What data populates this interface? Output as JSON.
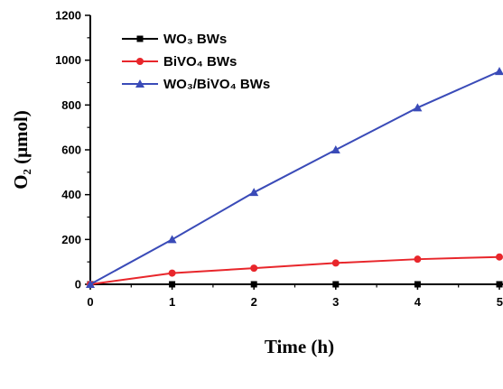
{
  "chart_data": {
    "type": "line",
    "xlabel": "Time (h)",
    "ylabel": "O₂ (μmol)",
    "xlim": [
      0,
      5
    ],
    "ylim": [
      0,
      1200
    ],
    "x": [
      0,
      1,
      2,
      3,
      4,
      5
    ],
    "x_ticks": [
      "0",
      "1",
      "2",
      "3",
      "4",
      "5"
    ],
    "y_ticks": [
      "0",
      "200",
      "400",
      "600",
      "800",
      "1000",
      "1200"
    ],
    "grid": false,
    "legend_position": "top-left",
    "series": [
      {
        "name": "WO₃ BWs",
        "color": "#000000",
        "marker": "square",
        "values": [
          0,
          0,
          0,
          0,
          0,
          0
        ]
      },
      {
        "name": "BiVO₄ BWs",
        "color": "#e8262b",
        "marker": "circle",
        "values": [
          0,
          50,
          72,
          95,
          112,
          122
        ]
      },
      {
        "name": "WO₃/BiVO₄ BWs",
        "color": "#3a4bb8",
        "marker": "triangle",
        "values": [
          0,
          200,
          410,
          600,
          788,
          950
        ]
      }
    ]
  }
}
